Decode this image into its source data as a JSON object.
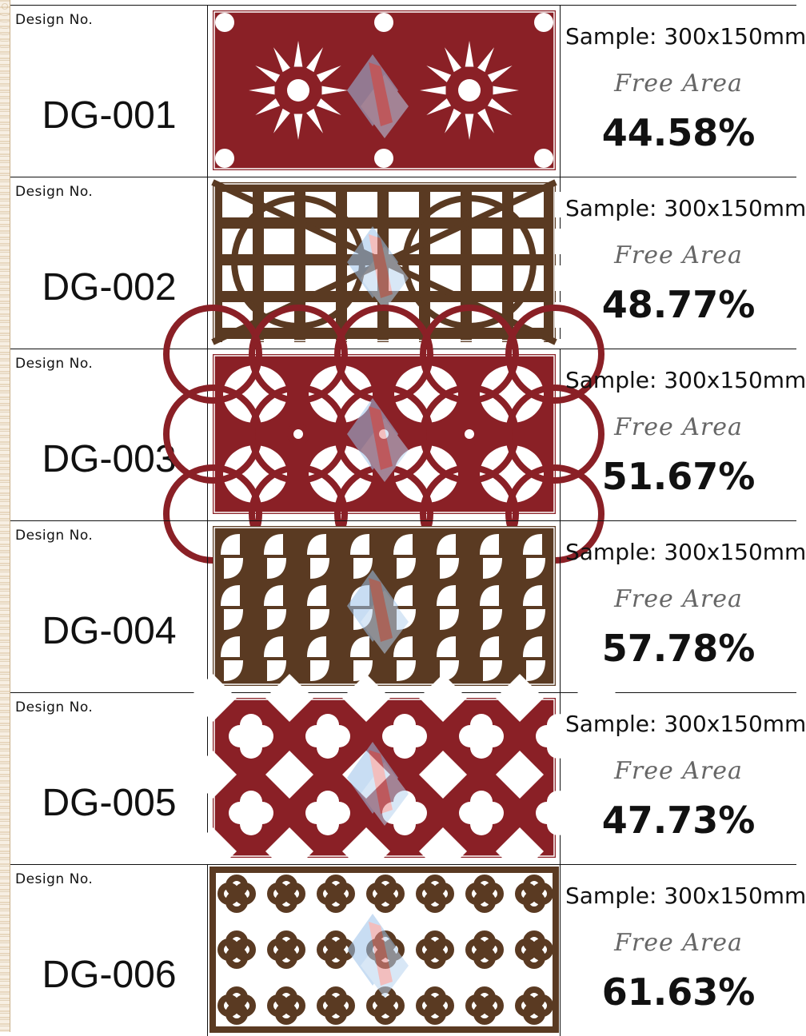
{
  "colors": {
    "red": "#8a2026",
    "brown": "#5a3a22"
  },
  "rows": [
    {
      "design_label": "Design  No.",
      "code": "DG-001",
      "sample": "Sample: 300x150mm",
      "free_label": "Free Area",
      "free_value": "44.58%",
      "panel_color": "red",
      "pattern": "star"
    },
    {
      "design_label": "Design  No.",
      "code": "DG-002",
      "sample": "Sample: 300x150mm",
      "free_label": "Free Area",
      "free_value": "48.77%",
      "panel_color": "brown",
      "pattern": "squares-arcs"
    },
    {
      "design_label": "Design  No.",
      "code": "DG-003",
      "sample": "Sample: 300x150mm",
      "free_label": "Free Area",
      "free_value": "51.67%",
      "panel_color": "red",
      "pattern": "circles"
    },
    {
      "design_label": "Design  No.",
      "code": "DG-004",
      "sample": "Sample: 300x150mm",
      "free_label": "Free Area",
      "free_value": "57.78%",
      "panel_color": "brown",
      "pattern": "leaves"
    },
    {
      "design_label": "Design  No.",
      "code": "DG-005",
      "sample": "Sample: 300x150mm",
      "free_label": "Free Area",
      "free_value": "47.73%",
      "panel_color": "red",
      "pattern": "lattice"
    },
    {
      "design_label": "Design  No.",
      "code": "DG-006",
      "sample": "Sample: 300x150mm",
      "free_label": "Free Area",
      "free_value": "61.63%",
      "panel_color": "brown",
      "pattern": "quatrefoil"
    }
  ]
}
